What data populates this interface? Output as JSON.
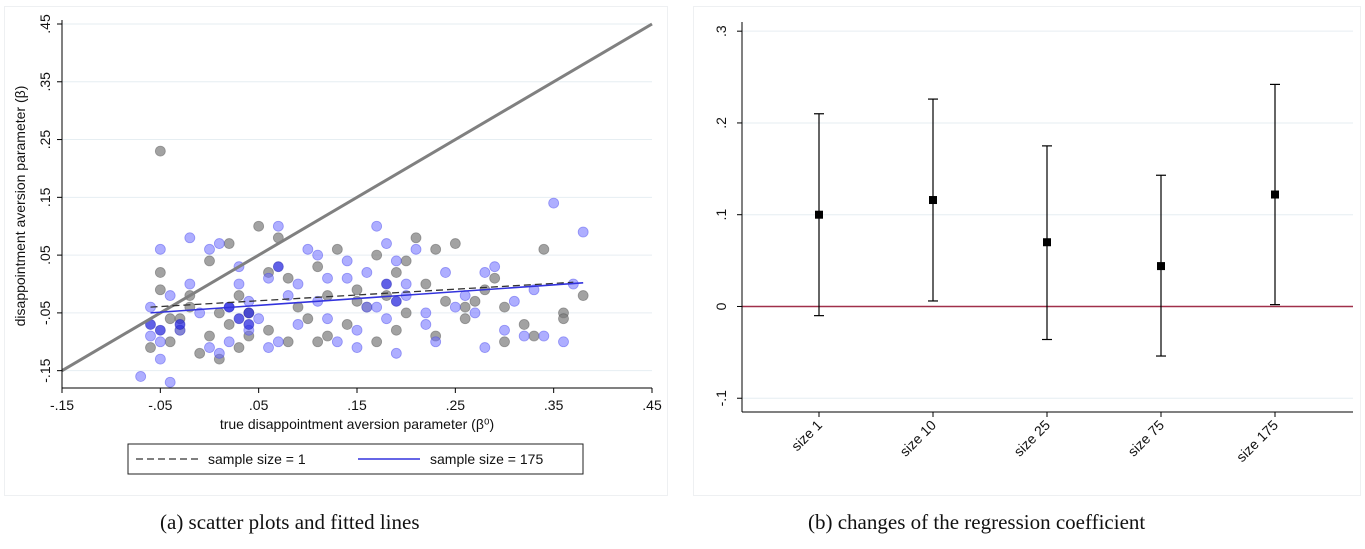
{
  "captions": {
    "a": "(a)  scatter plots and fitted lines",
    "b": "(b)  changes of the regression coefficient"
  },
  "colors": {
    "axis": "#000000",
    "grid": "#e6eef2",
    "diagonal": "#808080",
    "gray_points": "#7a7a7a",
    "blue_points": "#6b6bff",
    "dash_line": "#333333",
    "blue_line": "#3333dd",
    "zero_line": "#a0304a",
    "frame": "#eef0f2"
  },
  "chart_data": [
    {
      "type": "scatter",
      "xlabel": "true disappointment aversion parameter (β⁰)",
      "ylabel": "disappointment aversion parameter (β)",
      "xlim": [
        -0.15,
        0.45
      ],
      "ylim": [
        -0.18,
        0.45
      ],
      "xticks": [
        -0.15,
        -0.05,
        0.05,
        0.15,
        0.25,
        0.35,
        0.45
      ],
      "xtick_labels": [
        "-.15",
        "-.05",
        ".05",
        ".15",
        ".25",
        ".35",
        ".45"
      ],
      "yticks": [
        -0.15,
        -0.05,
        0.05,
        0.15,
        0.25,
        0.35,
        0.45
      ],
      "ytick_labels": [
        "-.15",
        "-.05",
        ".05",
        ".15",
        ".25",
        ".35",
        ".45"
      ],
      "grid": true,
      "legend": {
        "position": "bottom",
        "entries": [
          {
            "label": "sample size = 1",
            "style": "dashed"
          },
          {
            "label": "sample size = 175",
            "style": "solid"
          }
        ]
      },
      "lines": [
        {
          "name": "45-degree line",
          "x": [
            -0.15,
            0.45
          ],
          "y": [
            -0.15,
            0.45
          ]
        },
        {
          "name": "sample size = 1",
          "x": [
            -0.06,
            0.37
          ],
          "y": [
            -0.04,
            0.003
          ]
        },
        {
          "name": "sample size = 175",
          "x": [
            -0.06,
            0.38
          ],
          "y": [
            -0.05,
            0.002
          ]
        }
      ],
      "series": [
        {
          "name": "sample size = 1",
          "points": [
            [
              -0.05,
              0.23
            ],
            [
              -0.06,
              -0.11
            ],
            [
              -0.05,
              0.02
            ],
            [
              -0.05,
              -0.01
            ],
            [
              -0.04,
              -0.06
            ],
            [
              -0.03,
              -0.08
            ],
            [
              -0.02,
              -0.04
            ],
            [
              -0.01,
              -0.12
            ],
            [
              0.0,
              -0.09
            ],
            [
              0.01,
              -0.13
            ],
            [
              0.02,
              -0.07
            ],
            [
              0.03,
              -0.02
            ],
            [
              0.04,
              -0.05
            ],
            [
              0.06,
              -0.08
            ],
            [
              0.08,
              -0.1
            ],
            [
              0.1,
              -0.06
            ],
            [
              0.12,
              -0.09
            ],
            [
              0.14,
              -0.07
            ],
            [
              0.16,
              -0.04
            ],
            [
              0.18,
              -0.02
            ],
            [
              0.2,
              -0.05
            ],
            [
              0.22,
              0.0
            ],
            [
              0.24,
              -0.03
            ],
            [
              0.26,
              -0.06
            ],
            [
              0.28,
              -0.01
            ],
            [
              0.3,
              -0.04
            ],
            [
              0.32,
              -0.07
            ],
            [
              0.34,
              0.06
            ],
            [
              0.36,
              -0.05
            ],
            [
              0.38,
              -0.02
            ],
            [
              0.0,
              0.04
            ],
            [
              0.02,
              0.07
            ],
            [
              0.05,
              0.1
            ],
            [
              0.07,
              0.08
            ],
            [
              0.11,
              0.03
            ],
            [
              0.13,
              0.06
            ],
            [
              0.15,
              -0.01
            ],
            [
              0.17,
              0.05
            ],
            [
              0.19,
              0.02
            ],
            [
              0.21,
              0.08
            ],
            [
              0.23,
              0.06
            ],
            [
              0.25,
              0.07
            ],
            [
              0.27,
              -0.03
            ],
            [
              -0.04,
              -0.1
            ],
            [
              -0.02,
              -0.02
            ],
            [
              0.03,
              -0.11
            ],
            [
              0.09,
              -0.04
            ],
            [
              0.11,
              -0.1
            ],
            [
              0.19,
              -0.08
            ],
            [
              0.23,
              -0.09
            ],
            [
              0.3,
              -0.1
            ],
            [
              0.33,
              -0.09
            ],
            [
              0.06,
              0.02
            ],
            [
              0.15,
              -0.03
            ],
            [
              0.2,
              0.04
            ],
            [
              -0.03,
              -0.06
            ],
            [
              0.01,
              -0.05
            ],
            [
              0.04,
              -0.09
            ],
            [
              0.08,
              0.01
            ],
            [
              0.12,
              -0.02
            ],
            [
              0.17,
              -0.1
            ],
            [
              0.26,
              -0.04
            ],
            [
              0.29,
              0.01
            ],
            [
              0.36,
              -0.06
            ]
          ]
        },
        {
          "name": "sample size = 175",
          "points": [
            [
              -0.07,
              -0.16
            ],
            [
              -0.06,
              -0.09
            ],
            [
              -0.05,
              0.06
            ],
            [
              -0.05,
              -0.1
            ],
            [
              -0.04,
              -0.17
            ],
            [
              -0.03,
              -0.08
            ],
            [
              -0.02,
              0.08
            ],
            [
              -0.01,
              -0.05
            ],
            [
              0.0,
              0.06
            ],
            [
              0.01,
              -0.12
            ],
            [
              0.02,
              -0.04
            ],
            [
              0.03,
              0.03
            ],
            [
              0.04,
              -0.08
            ],
            [
              0.05,
              -0.06
            ],
            [
              0.06,
              -0.11
            ],
            [
              0.07,
              0.1
            ],
            [
              0.08,
              -0.02
            ],
            [
              0.09,
              -0.07
            ],
            [
              0.1,
              0.06
            ],
            [
              0.11,
              -0.03
            ],
            [
              0.12,
              0.01
            ],
            [
              0.13,
              -0.1
            ],
            [
              0.14,
              0.04
            ],
            [
              0.15,
              -0.08
            ],
            [
              0.16,
              0.02
            ],
            [
              0.17,
              0.1
            ],
            [
              0.18,
              -0.06
            ],
            [
              0.19,
              -0.12
            ],
            [
              0.2,
              -0.02
            ],
            [
              0.21,
              0.06
            ],
            [
              0.22,
              -0.05
            ],
            [
              0.23,
              -0.1
            ],
            [
              0.24,
              0.02
            ],
            [
              0.26,
              -0.02
            ],
            [
              0.27,
              -0.05
            ],
            [
              0.28,
              -0.11
            ],
            [
              0.29,
              0.03
            ],
            [
              0.3,
              -0.08
            ],
            [
              0.32,
              -0.09
            ],
            [
              0.34,
              -0.09
            ],
            [
              0.35,
              0.14
            ],
            [
              0.36,
              -0.1
            ],
            [
              0.38,
              0.09
            ],
            [
              -0.06,
              -0.04
            ],
            [
              -0.04,
              -0.02
            ],
            [
              -0.02,
              0.0
            ],
            [
              0.01,
              0.07
            ],
            [
              0.03,
              0.0
            ],
            [
              0.04,
              -0.03
            ],
            [
              0.06,
              0.01
            ],
            [
              0.09,
              0.0
            ],
            [
              0.11,
              0.05
            ],
            [
              0.14,
              0.01
            ],
            [
              0.16,
              -0.04
            ],
            [
              0.18,
              0.07
            ],
            [
              0.19,
              0.04
            ],
            [
              0.22,
              -0.07
            ],
            [
              0.25,
              -0.04
            ],
            [
              0.28,
              0.02
            ],
            [
              0.31,
              -0.03
            ],
            [
              0.33,
              -0.01
            ],
            [
              0.37,
              0.0
            ],
            [
              -0.05,
              -0.13
            ],
            [
              0.0,
              -0.11
            ],
            [
              0.02,
              -0.1
            ],
            [
              0.07,
              -0.1
            ],
            [
              0.12,
              -0.06
            ],
            [
              0.15,
              -0.11
            ],
            [
              0.17,
              -0.04
            ],
            [
              0.2,
              0.0
            ]
          ]
        },
        {
          "name": "sample size = 175 (dark)",
          "points": [
            [
              -0.05,
              -0.08
            ],
            [
              -0.03,
              -0.07
            ],
            [
              0.03,
              -0.06
            ],
            [
              0.04,
              -0.05
            ],
            [
              0.04,
              -0.07
            ],
            [
              0.07,
              0.03
            ],
            [
              0.18,
              0.0
            ],
            [
              0.19,
              -0.03
            ],
            [
              -0.06,
              -0.07
            ],
            [
              0.02,
              -0.04
            ]
          ]
        }
      ]
    },
    {
      "type": "errorbar",
      "categories": [
        "size 1",
        "size 10",
        "size 25",
        "size 75",
        "size 175"
      ],
      "values": [
        0.1,
        0.116,
        0.07,
        0.044,
        0.122
      ],
      "lower": [
        -0.01,
        0.006,
        -0.036,
        -0.054,
        0.002
      ],
      "upper": [
        0.21,
        0.226,
        0.175,
        0.143,
        0.242
      ],
      "ylim": [
        -0.115,
        0.31
      ],
      "yticks": [
        -0.1,
        0,
        0.1,
        0.2,
        0.3
      ],
      "ytick_labels": [
        "-.1",
        "0",
        ".1",
        ".2",
        ".3"
      ],
      "reference_line": 0,
      "grid": true,
      "xlabel": "",
      "ylabel": ""
    }
  ]
}
